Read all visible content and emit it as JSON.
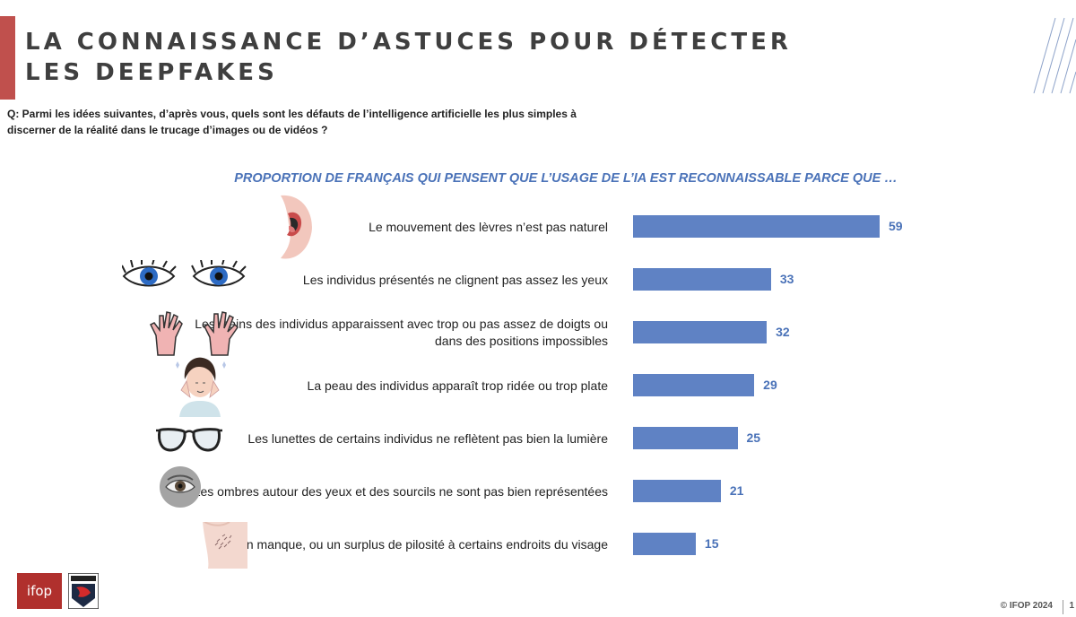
{
  "title": "LA CONNAISSANCE D’ASTUCES POUR DÉTECTER LES DEEPFAKES",
  "question": "Q: Parmi les idées suivantes, d’après vous, quels sont les défauts de l’intelligence artificielle les plus simples à discerner de la réalité dans le trucage d’images ou de vidéos ?",
  "subtitle": "PROPORTION DE FRANÇAIS QUI PENSENT QUE L’USAGE DE L’IA EST RECONNAISSABLE  PARCE QUE …",
  "colors": {
    "accent": "#c0504d",
    "bar": "#5f82c4",
    "value_text": "#4a72b8"
  },
  "chart_data": {
    "type": "bar",
    "orientation": "horizontal",
    "categories": [
      "Le mouvement des lèvres n’est pas naturel",
      "Les individus présentés ne clignent pas assez les yeux",
      "Les mains des individus apparaissent avec trop ou pas assez de doigts ou dans des positions impossibles",
      "La peau des individus apparaît trop ridée ou trop plate",
      "Les lunettes de certains individus ne reflètent pas bien la lumière",
      "Les ombres autour des yeux et des sourcils ne sont pas bien représentées",
      "Il y a un manque, ou un surplus de pilosité à certains endroits du visage"
    ],
    "values": [
      59,
      33,
      32,
      29,
      25,
      21,
      15
    ],
    "icons": [
      "mouth-icon",
      "eyes-icon",
      "hands-icon",
      "face-skin-icon",
      "glasses-icon",
      "eye-shadow-icon",
      "hair-skin-icon"
    ],
    "data_labels": true,
    "grid": false
  },
  "logos": {
    "ifop": "ifop"
  },
  "footer": "© IFOP 2024",
  "page_number": "1"
}
